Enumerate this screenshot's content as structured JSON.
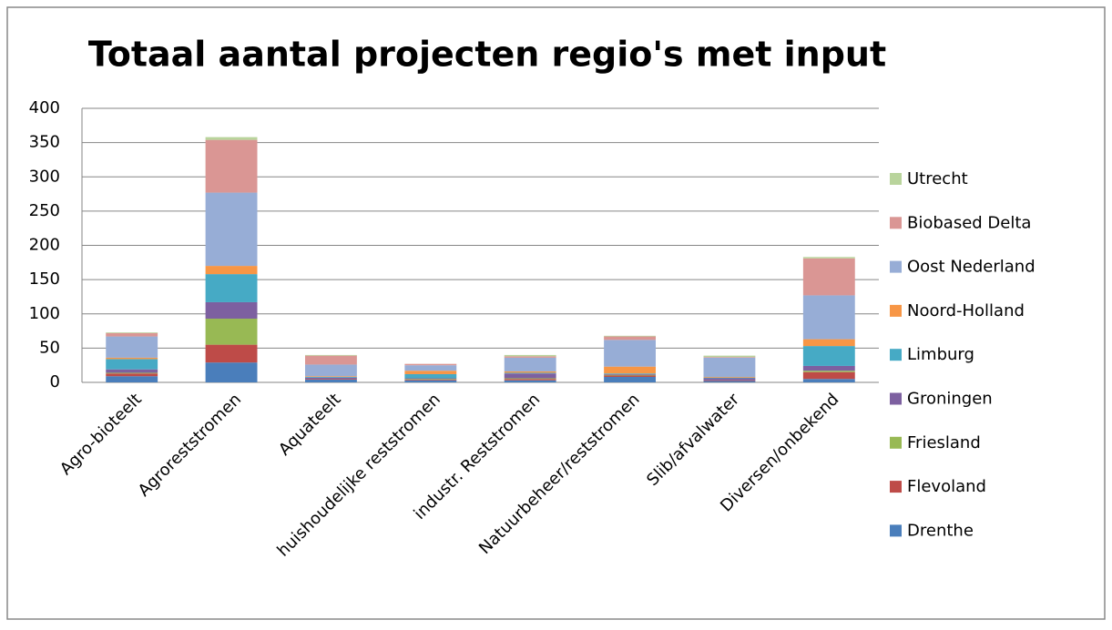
{
  "chart_data": {
    "type": "stacked_bar",
    "title": "Totaal aantal projecten regio's met input",
    "categories": [
      "Agro-bioteelt",
      "Agroreststromen",
      "Aquateelt",
      "huishoudelijke reststromen",
      "industr. Reststromen",
      "Natuurbeheer/reststromen",
      "Slib/afvalwater",
      "Diversen/onbekend"
    ],
    "series": [
      {
        "name": "Drenthe",
        "color": "#4a7ebb",
        "values": [
          9,
          29,
          4,
          3,
          3,
          8,
          2,
          5
        ]
      },
      {
        "name": "Flevoland",
        "color": "#be4b48",
        "values": [
          4,
          26,
          1,
          1,
          2,
          2,
          1,
          10
        ]
      },
      {
        "name": "Friesland",
        "color": "#98b954",
        "values": [
          1,
          38,
          0,
          1,
          1,
          1,
          0,
          2
        ]
      },
      {
        "name": "Groningen",
        "color": "#7d60a0",
        "values": [
          5,
          24,
          2,
          1,
          7,
          1,
          3,
          7
        ]
      },
      {
        "name": "Limburg",
        "color": "#46aac5",
        "values": [
          15,
          41,
          1,
          6,
          1,
          1,
          1,
          29
        ]
      },
      {
        "name": "Noord-Holland",
        "color": "#f79646",
        "values": [
          2,
          12,
          1,
          5,
          2,
          10,
          1,
          10
        ]
      },
      {
        "name": "Oost Nederland",
        "color": "#97add6",
        "values": [
          31,
          107,
          17,
          8,
          20,
          39,
          28,
          64
        ]
      },
      {
        "name": "Biobased Delta",
        "color": "#da9694",
        "values": [
          5,
          77,
          13,
          2,
          2,
          5,
          1,
          54
        ]
      },
      {
        "name": "Utrecht",
        "color": "#b9d49c",
        "values": [
          1,
          4,
          1,
          0,
          2,
          1,
          2,
          2
        ]
      }
    ],
    "ylim": [
      0,
      400
    ],
    "yticks": [
      0,
      50,
      100,
      150,
      200,
      250,
      300,
      350,
      400
    ],
    "grid": true,
    "legend": "right"
  }
}
